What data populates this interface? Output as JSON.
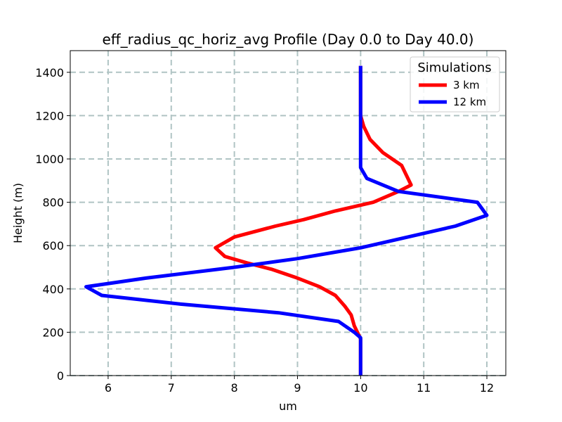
{
  "chart_data": {
    "type": "line",
    "title": "eff_radius_qc_horiz_avg Profile (Day 0.0 to Day 40.0)",
    "xlabel": "um",
    "ylabel": "Height (m)",
    "xlim": [
      5.4,
      12.3
    ],
    "ylim": [
      0,
      1500
    ],
    "xticks": [
      6,
      7,
      8,
      9,
      10,
      11,
      12
    ],
    "yticks": [
      0,
      200,
      400,
      600,
      800,
      1000,
      1200,
      1400
    ],
    "grid": true,
    "legend": {
      "title": "Simulations",
      "placement": "top-right"
    },
    "series": [
      {
        "name": "3 km",
        "color": "#ff0000",
        "x": [
          10.0,
          10.0,
          10.0,
          9.9,
          9.85,
          9.75,
          9.6,
          9.35,
          9.0,
          8.6,
          8.2,
          7.85,
          7.7,
          8.0,
          8.65,
          9.1,
          9.6,
          10.2,
          10.6,
          10.8,
          10.65,
          10.35,
          10.15,
          10.05,
          10.0,
          10.0,
          10.0
        ],
        "y": [
          0,
          100,
          170,
          230,
          280,
          320,
          370,
          410,
          450,
          490,
          520,
          550,
          590,
          640,
          690,
          720,
          760,
          800,
          850,
          880,
          970,
          1030,
          1090,
          1150,
          1200,
          1300,
          1430
        ]
      },
      {
        "name": "12 km",
        "color": "#0000ff",
        "x": [
          10.0,
          10.0,
          10.0,
          9.9,
          9.65,
          8.7,
          7.15,
          5.9,
          5.65,
          6.6,
          8.0,
          9.0,
          10.0,
          10.75,
          11.5,
          12.0,
          11.85,
          10.6,
          10.1,
          10.0,
          10.0,
          10.0,
          10.0,
          10.0
        ],
        "y": [
          0,
          100,
          175,
          200,
          250,
          290,
          330,
          370,
          410,
          450,
          500,
          540,
          590,
          640,
          690,
          740,
          800,
          850,
          910,
          960,
          1000,
          1100,
          1200,
          1430
        ]
      }
    ]
  }
}
